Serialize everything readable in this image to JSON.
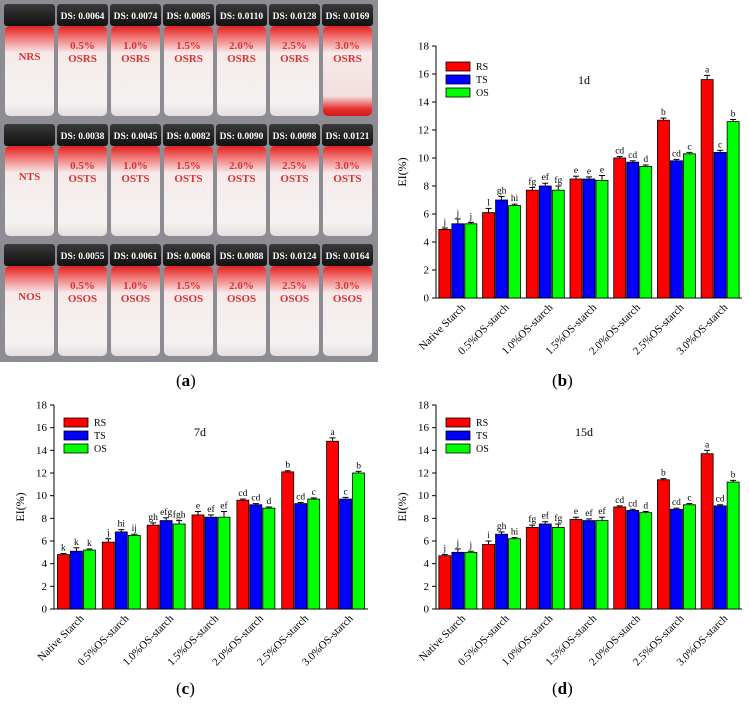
{
  "captions": {
    "a": {
      "open": "(",
      "letter": "a",
      "close": ")"
    },
    "b": {
      "open": "(",
      "letter": "b",
      "close": ")"
    },
    "c": {
      "open": "(",
      "letter": "c",
      "close": ")"
    },
    "d": {
      "open": "(",
      "letter": "d",
      "close": ")"
    }
  },
  "photo": {
    "rows": [
      {
        "vials": [
          {
            "ds": "",
            "line1": "NRS",
            "line2": ""
          },
          {
            "ds": "DS: 0.0064",
            "line1": "0.5%",
            "line2": "OSRS"
          },
          {
            "ds": "DS: 0.0074",
            "line1": "1.0%",
            "line2": "OSRS"
          },
          {
            "ds": "DS: 0.0085",
            "line1": "1.5%",
            "line2": "OSRS"
          },
          {
            "ds": "DS: 0.0110",
            "line1": "2.0%",
            "line2": "OSRS"
          },
          {
            "ds": "DS: 0.0128",
            "line1": "2.5%",
            "line2": "OSRS"
          },
          {
            "ds": "DS: 0.0169",
            "line1": "3.0%",
            "line2": "OSRS"
          }
        ]
      },
      {
        "vials": [
          {
            "ds": "",
            "line1": "NTS",
            "line2": ""
          },
          {
            "ds": "DS: 0.0038",
            "line1": "0.5%",
            "line2": "OSTS"
          },
          {
            "ds": "DS: 0.0045",
            "line1": "1.0%",
            "line2": "OSTS"
          },
          {
            "ds": "DS: 0.0082",
            "line1": "1.5%",
            "line2": "OSTS"
          },
          {
            "ds": "DS: 0.0090",
            "line1": "2.0%",
            "line2": "OSTS"
          },
          {
            "ds": "DS: 0.0098",
            "line1": "2.5%",
            "line2": "OSTS"
          },
          {
            "ds": "DS: 0.0121",
            "line1": "3.0%",
            "line2": "OSTS"
          }
        ]
      },
      {
        "vials": [
          {
            "ds": "",
            "line1": "NOS",
            "line2": ""
          },
          {
            "ds": "DS: 0.0055",
            "line1": "0.5%",
            "line2": "OSOS"
          },
          {
            "ds": "DS: 0.0061",
            "line1": "1.0%",
            "line2": "OSOS"
          },
          {
            "ds": "DS: 0.0068",
            "line1": "1.5%",
            "line2": "OSOS"
          },
          {
            "ds": "DS: 0.0088",
            "line1": "2.0%",
            "line2": "OSOS"
          },
          {
            "ds": "DS: 0.0124",
            "line1": "2.5%",
            "line2": "OSOS"
          },
          {
            "ds": "DS: 0.0164",
            "line1": "3.0%",
            "line2": "OSOS"
          }
        ]
      }
    ]
  },
  "colors": {
    "RS": "#ff0000",
    "TS": "#0000ff",
    "OS": "#00ff00"
  },
  "chart_data": [
    {
      "panel": "b",
      "type": "bar",
      "title": "1d",
      "xlabel": "",
      "ylabel": "EI(%)",
      "ylim": [
        0,
        18
      ],
      "yticks": [
        "0",
        "2",
        "4",
        "6",
        "8",
        "10",
        "12",
        "14",
        "16",
        "18"
      ],
      "categories": [
        "Native Starch",
        "0.5%OS-starch",
        "1.0%OS-starch",
        "1.5%OS-starch",
        "2.0%OS-starch",
        "2.5%OS-starch",
        "3.0%OS-starch"
      ],
      "series": [
        {
          "name": "RS",
          "values": [
            4.9,
            6.1,
            7.7,
            8.5,
            10.0,
            12.7,
            15.6
          ],
          "errors": [
            0.1,
            0.3,
            0.2,
            0.2,
            0.1,
            0.15,
            0.3
          ],
          "labels": [
            "j",
            "l",
            "fg",
            "e",
            "cd",
            "b",
            "a"
          ]
        },
        {
          "name": "TS",
          "values": [
            5.3,
            7.0,
            8.0,
            8.5,
            9.7,
            9.8,
            10.4
          ],
          "errors": [
            0.35,
            0.25,
            0.2,
            0.15,
            0.1,
            0.1,
            0.15
          ],
          "labels": [
            "j",
            "gh",
            "ef",
            "e",
            "cd",
            "cd",
            "c"
          ]
        },
        {
          "name": "OS",
          "values": [
            5.3,
            6.6,
            7.7,
            8.4,
            9.4,
            10.3,
            12.6
          ],
          "errors": [
            0.1,
            0.1,
            0.3,
            0.35,
            0.1,
            0.1,
            0.15
          ],
          "labels": [
            "j",
            "hi",
            "fg",
            "e",
            "d",
            "c",
            "b"
          ]
        }
      ],
      "legend": "top-left"
    },
    {
      "panel": "c",
      "type": "bar",
      "title": "7d",
      "xlabel": "",
      "ylabel": "EI(%)",
      "ylim": [
        0,
        18
      ],
      "yticks": [
        "0",
        "2",
        "4",
        "6",
        "8",
        "10",
        "12",
        "14",
        "16",
        "18"
      ],
      "categories": [
        "Native Starch",
        "0.5%OS-starch",
        "1.0%OS-starch",
        "1.5%OS-starch",
        "2.0%OS-starch",
        "2.5%OS-starch",
        "3.0%OS-starch"
      ],
      "series": [
        {
          "name": "RS",
          "values": [
            4.8,
            5.9,
            7.4,
            8.3,
            9.6,
            12.1,
            14.8
          ],
          "errors": [
            0.1,
            0.3,
            0.2,
            0.3,
            0.1,
            0.1,
            0.3
          ],
          "labels": [
            "k",
            "j",
            "gh",
            "e",
            "cd",
            "b",
            "a"
          ]
        },
        {
          "name": "TS",
          "values": [
            5.1,
            6.8,
            7.8,
            8.1,
            9.2,
            9.3,
            9.7
          ],
          "errors": [
            0.3,
            0.2,
            0.25,
            0.2,
            0.1,
            0.1,
            0.15
          ],
          "labels": [
            "k",
            "hi",
            "efg",
            "ef",
            "cd",
            "cd",
            "c"
          ]
        },
        {
          "name": "OS",
          "values": [
            5.2,
            6.5,
            7.5,
            8.1,
            8.9,
            9.7,
            12.0
          ],
          "errors": [
            0.1,
            0.1,
            0.3,
            0.5,
            0.1,
            0.1,
            0.15
          ],
          "labels": [
            "k",
            "ij",
            "fgh",
            "ef",
            "d",
            "c",
            "b"
          ]
        }
      ],
      "legend": "top-left"
    },
    {
      "panel": "d",
      "type": "bar",
      "title": "15d",
      "xlabel": "",
      "ylabel": "EI(%)",
      "ylim": [
        0,
        18
      ],
      "yticks": [
        "0",
        "2",
        "4",
        "6",
        "8",
        "10",
        "12",
        "14",
        "16",
        "18"
      ],
      "categories": [
        "Native Starch",
        "0.5%OS-starch",
        "1.0%OS-starch",
        "1.5%OS-starch",
        "2.0%OS-starch",
        "2.5%OS-starch",
        "3.0%OS-starch"
      ],
      "series": [
        {
          "name": "RS",
          "values": [
            4.7,
            5.7,
            7.2,
            7.9,
            9.0,
            11.4,
            13.7
          ],
          "errors": [
            0.1,
            0.3,
            0.2,
            0.2,
            0.1,
            0.1,
            0.3
          ],
          "labels": [
            "j",
            "i",
            "fg",
            "e",
            "cd",
            "b",
            "a"
          ]
        },
        {
          "name": "TS",
          "values": [
            5.0,
            6.6,
            7.5,
            7.8,
            8.7,
            8.8,
            9.1
          ],
          "errors": [
            0.3,
            0.2,
            0.2,
            0.15,
            0.1,
            0.1,
            0.1
          ],
          "labels": [
            "j",
            "gh",
            "ef",
            "ef",
            "cd",
            "cd",
            "cd"
          ]
        },
        {
          "name": "OS",
          "values": [
            5.0,
            6.2,
            7.2,
            7.8,
            8.5,
            9.2,
            11.2
          ],
          "errors": [
            0.1,
            0.1,
            0.3,
            0.3,
            0.1,
            0.1,
            0.15
          ],
          "labels": [
            "j",
            "hi",
            "fg",
            "ef",
            "d",
            "c",
            "b"
          ]
        }
      ],
      "legend": "top-left"
    }
  ]
}
